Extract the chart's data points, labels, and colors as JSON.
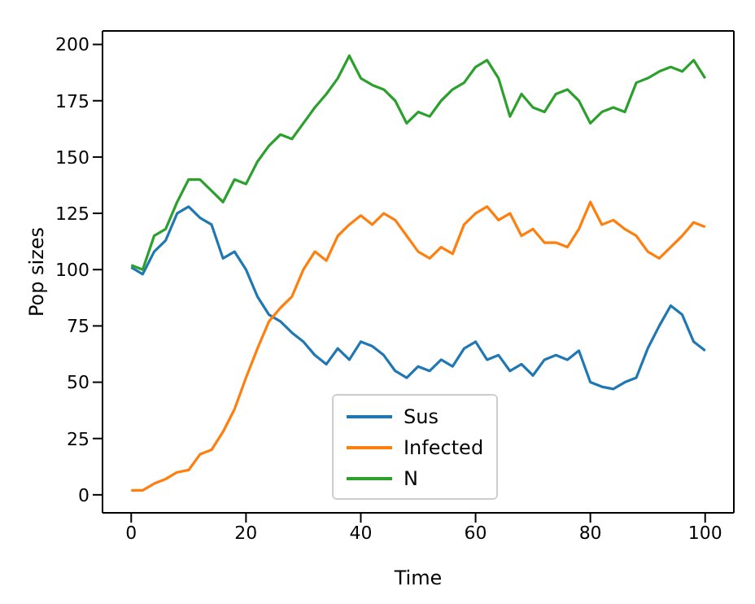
{
  "chart_data": {
    "type": "line",
    "xlabel": "Time",
    "ylabel": "Pop sizes",
    "x": [
      0,
      2,
      4,
      6,
      8,
      10,
      12,
      14,
      16,
      18,
      20,
      22,
      24,
      26,
      28,
      30,
      32,
      34,
      36,
      38,
      40,
      42,
      44,
      46,
      48,
      50,
      52,
      54,
      56,
      58,
      60,
      62,
      64,
      66,
      68,
      70,
      72,
      74,
      76,
      78,
      80,
      82,
      84,
      86,
      88,
      90,
      92,
      94,
      96,
      98,
      100
    ],
    "series": [
      {
        "name": "Sus",
        "color": "#1f77b4",
        "values": [
          101,
          98,
          108,
          113,
          125,
          128,
          123,
          120,
          105,
          108,
          100,
          88,
          80,
          77,
          72,
          68,
          62,
          58,
          65,
          60,
          68,
          66,
          62,
          55,
          52,
          57,
          55,
          60,
          57,
          65,
          68,
          60,
          62,
          55,
          58,
          53,
          60,
          62,
          60,
          64,
          50,
          48,
          47,
          50,
          52,
          65,
          75,
          84,
          80,
          68,
          64
        ]
      },
      {
        "name": "Infected",
        "color": "#ff7f0e",
        "values": [
          2,
          2,
          5,
          7,
          10,
          11,
          18,
          20,
          28,
          38,
          52,
          65,
          77,
          83,
          88,
          100,
          108,
          104,
          115,
          120,
          124,
          120,
          125,
          122,
          115,
          108,
          105,
          110,
          107,
          120,
          125,
          128,
          122,
          125,
          115,
          118,
          112,
          112,
          110,
          118,
          130,
          120,
          122,
          118,
          115,
          108,
          105,
          110,
          115,
          121,
          119
        ]
      },
      {
        "name": "N",
        "color": "#2ca02c",
        "values": [
          102,
          100,
          115,
          118,
          130,
          140,
          140,
          135,
          130,
          140,
          138,
          148,
          155,
          160,
          158,
          165,
          172,
          178,
          185,
          195,
          185,
          182,
          180,
          175,
          165,
          170,
          168,
          175,
          180,
          183,
          190,
          193,
          185,
          168,
          178,
          172,
          170,
          178,
          180,
          175,
          165,
          170,
          172,
          170,
          183,
          185,
          188,
          190,
          188,
          193,
          185
        ]
      }
    ],
    "xlim": [
      -5,
      105
    ],
    "ylim": [
      -8,
      206
    ],
    "xticks": [
      0,
      20,
      40,
      60,
      80,
      100
    ],
    "yticks": [
      0,
      25,
      50,
      75,
      100,
      125,
      150,
      175,
      200
    ],
    "legend": "bottom",
    "grid": false,
    "marker": "none",
    "line_style": "solid"
  }
}
